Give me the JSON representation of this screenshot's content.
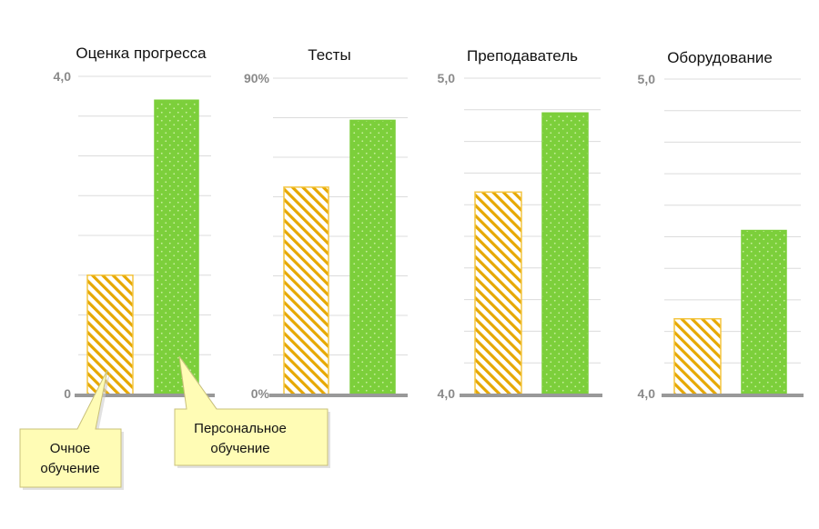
{
  "colors": {
    "face_to_face": "#f4c542",
    "face_to_face_hatch": "#e6a800",
    "personal": "#7ccf3b",
    "personal_dots": "#c9ef9f",
    "grid": "#dcdcdc",
    "baseline": "#999999",
    "callout_fill": "#fffcb5",
    "callout_stroke": "#c9c07a"
  },
  "legend_callouts": [
    {
      "series": "face_to_face",
      "lines": [
        "Очное",
        "обучение"
      ]
    },
    {
      "series": "personal",
      "lines": [
        "Персональное",
        "обучение"
      ]
    }
  ],
  "chart_data": [
    {
      "type": "bar",
      "title": "Оценка прогресса",
      "ylim": [
        0,
        4.0
      ],
      "tick_labels": {
        "min": "0",
        "max": "4,0"
      },
      "grid_count": 8,
      "series": [
        {
          "key": "face_to_face",
          "values": [
            1.5
          ]
        },
        {
          "key": "personal",
          "values": [
            3.7
          ]
        }
      ]
    },
    {
      "type": "bar",
      "title": "Тесты",
      "ylim": [
        0,
        90
      ],
      "tick_labels": {
        "min": "0%",
        "max": "90%"
      },
      "grid_count": 8,
      "series": [
        {
          "key": "face_to_face",
          "values": [
            59
          ]
        },
        {
          "key": "personal",
          "values": [
            78
          ]
        }
      ]
    },
    {
      "type": "bar",
      "title": "Преподаватель",
      "ylim": [
        4.0,
        5.0
      ],
      "tick_labels": {
        "min": "4,0",
        "max": "5,0"
      },
      "grid_count": 10,
      "series": [
        {
          "key": "face_to_face",
          "values": [
            4.64
          ]
        },
        {
          "key": "personal",
          "values": [
            4.89
          ]
        }
      ]
    },
    {
      "type": "bar",
      "title": "Оборудование",
      "ylim": [
        4.0,
        5.0
      ],
      "tick_labels": {
        "min": "4,0",
        "max": "5,0"
      },
      "grid_count": 10,
      "series": [
        {
          "key": "face_to_face",
          "values": [
            4.24
          ]
        },
        {
          "key": "personal",
          "values": [
            4.52
          ]
        }
      ]
    }
  ]
}
